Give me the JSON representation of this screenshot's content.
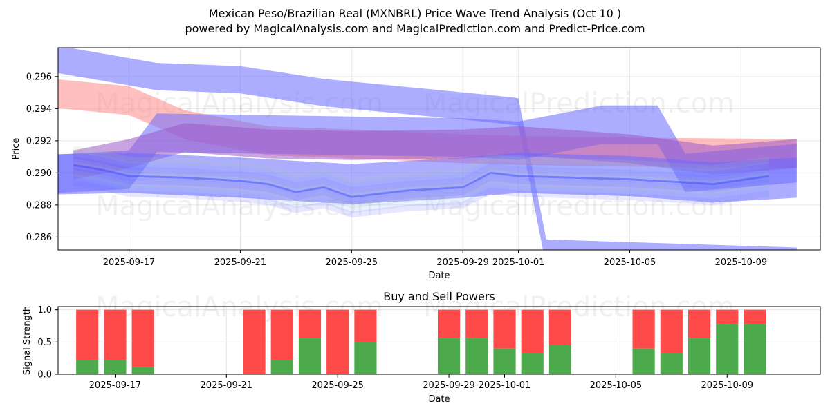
{
  "header": {
    "title_line1": "Mexican Peso/Brazilian Real (MXNBRL) Price Wave Trend Analysis (Oct 10 )",
    "title_line2": "powered by MagicalAnalysis.com and MagicalPrediction.com and Predict-Price.com"
  },
  "watermarks": [
    "MagicalAnalysis.com",
    "MagicalPrediction.com"
  ],
  "colors": {
    "red_band": "#ff8a8a",
    "blue_band": "#6a6aff",
    "purple_band": "#9a5ac8",
    "buy": "#4caa4c",
    "sell": "#ff4a4a",
    "grid": "#e6e6e6"
  },
  "chart_data": [
    {
      "type": "area",
      "title": "",
      "xlabel": "Date",
      "ylabel": "Price",
      "x_range": [
        "2025-09-14",
        "2025-10-11"
      ],
      "ylim": [
        0.2852,
        0.2978
      ],
      "yticks": [
        0.286,
        0.288,
        0.29,
        0.292,
        0.294,
        0.296
      ],
      "ytick_labels": [
        "0.286",
        "0.288",
        "0.290",
        "0.292",
        "0.294",
        "0.296"
      ],
      "xticks": [
        "2025-09-17",
        "2025-09-21",
        "2025-09-25",
        "2025-09-29",
        "2025-10-01",
        "2025-10-05",
        "2025-10-09"
      ],
      "grid": true,
      "series": [
        {
          "name": "blue-wave-high",
          "color": "blue",
          "width": 0.0017,
          "x": [
            "2025-09-14",
            "2025-09-18",
            "2025-09-21",
            "2025-09-24",
            "2025-09-27",
            "2025-09-30",
            "2025-10-01",
            "2025-10-02",
            "2025-10-11"
          ],
          "values": [
            0.2972,
            0.296,
            0.2958,
            0.295,
            0.2945,
            0.294,
            0.2938,
            0.285,
            0.2845
          ]
        },
        {
          "name": "red-wave",
          "color": "red",
          "width": 0.0018,
          "x": [
            "2025-09-14",
            "2025-09-17",
            "2025-09-19",
            "2025-09-22",
            "2025-09-25",
            "2025-09-29",
            "2025-10-01",
            "2025-10-05",
            "2025-10-11"
          ],
          "values": [
            0.295,
            0.2945,
            0.293,
            0.292,
            0.2918,
            0.2915,
            0.2914,
            0.2913,
            0.2912
          ]
        },
        {
          "name": "blue-wave-mid",
          "color": "blue",
          "width": 0.0024,
          "x": [
            "2025-09-14",
            "2025-09-17",
            "2025-09-18",
            "2025-09-29",
            "2025-10-01",
            "2025-10-04",
            "2025-10-06",
            "2025-10-07",
            "2025-10-11"
          ],
          "values": [
            0.2899,
            0.2902,
            0.2925,
            0.2922,
            0.292,
            0.293,
            0.293,
            0.29,
            0.2906
          ]
        },
        {
          "name": "purple-wave",
          "color": "purple",
          "width": 0.0018,
          "x": [
            "2025-09-15",
            "2025-09-17",
            "2025-09-19",
            "2025-09-22",
            "2025-09-25",
            "2025-09-29",
            "2025-10-01",
            "2025-10-05",
            "2025-10-08",
            "2025-10-11"
          ],
          "values": [
            0.2905,
            0.2912,
            0.2922,
            0.2918,
            0.2917,
            0.2918,
            0.292,
            0.2915,
            0.2908,
            0.2912
          ]
        },
        {
          "name": "blue-wave-low",
          "color": "blue",
          "width": 0.0025,
          "x": [
            "2025-09-14",
            "2025-09-17",
            "2025-09-21",
            "2025-09-25",
            "2025-09-29",
            "2025-10-01",
            "2025-10-05",
            "2025-10-08",
            "2025-10-11"
          ],
          "values": [
            0.2899,
            0.29,
            0.2897,
            0.2893,
            0.2897,
            0.29,
            0.2898,
            0.2894,
            0.2897
          ]
        },
        {
          "name": "bundle",
          "color": "mixed",
          "x": [
            "2025-09-15",
            "2025-09-16",
            "2025-09-17",
            "2025-09-19",
            "2025-09-21",
            "2025-09-22",
            "2025-09-23",
            "2025-09-24",
            "2025-09-25",
            "2025-09-27",
            "2025-09-29",
            "2025-09-30",
            "2025-10-01",
            "2025-10-03",
            "2025-10-05",
            "2025-10-07",
            "2025-10-08",
            "2025-10-10"
          ],
          "values": [
            0.2905,
            0.2902,
            0.2898,
            0.2897,
            0.2895,
            0.2893,
            0.2888,
            0.2891,
            0.2885,
            0.2889,
            0.2891,
            0.29,
            0.2898,
            0.2897,
            0.2896,
            0.2894,
            0.2893,
            0.2898
          ]
        }
      ]
    },
    {
      "type": "bar",
      "title": "Buy and Sell Powers",
      "xlabel": "Date",
      "ylabel": "Signal Strength",
      "ylim": [
        0,
        1.05
      ],
      "yticks": [
        0,
        0.5,
        1
      ],
      "ytick_labels": [
        "0.0",
        "0.5",
        "1.0"
      ],
      "xticks": [
        "2025-09-17",
        "2025-09-21",
        "2025-09-25",
        "2025-09-29",
        "2025-10-01",
        "2025-10-05",
        "2025-10-09"
      ],
      "grid": true,
      "categories": [
        "2025-09-16",
        "2025-09-17",
        "2025-09-18",
        "2025-09-22",
        "2025-09-23",
        "2025-09-24",
        "2025-09-25",
        "2025-09-26",
        "2025-09-29",
        "2025-09-30",
        "2025-10-01",
        "2025-10-02",
        "2025-10-03",
        "2025-10-06",
        "2025-10-07",
        "2025-10-08",
        "2025-10-09",
        "2025-10-10"
      ],
      "series": [
        {
          "name": "Buy",
          "color": "green",
          "values": [
            0.22,
            0.22,
            0.11,
            0.0,
            0.22,
            0.56,
            0.0,
            0.5,
            0.56,
            0.56,
            0.4,
            0.33,
            0.45,
            0.4,
            0.33,
            0.56,
            0.78,
            0.78
          ]
        },
        {
          "name": "Sell",
          "color": "red",
          "values": [
            0.78,
            0.78,
            0.89,
            1.0,
            0.78,
            0.44,
            1.0,
            0.5,
            0.44,
            0.44,
            0.6,
            0.67,
            0.55,
            0.6,
            0.67,
            0.44,
            0.22,
            0.22
          ]
        }
      ]
    }
  ]
}
